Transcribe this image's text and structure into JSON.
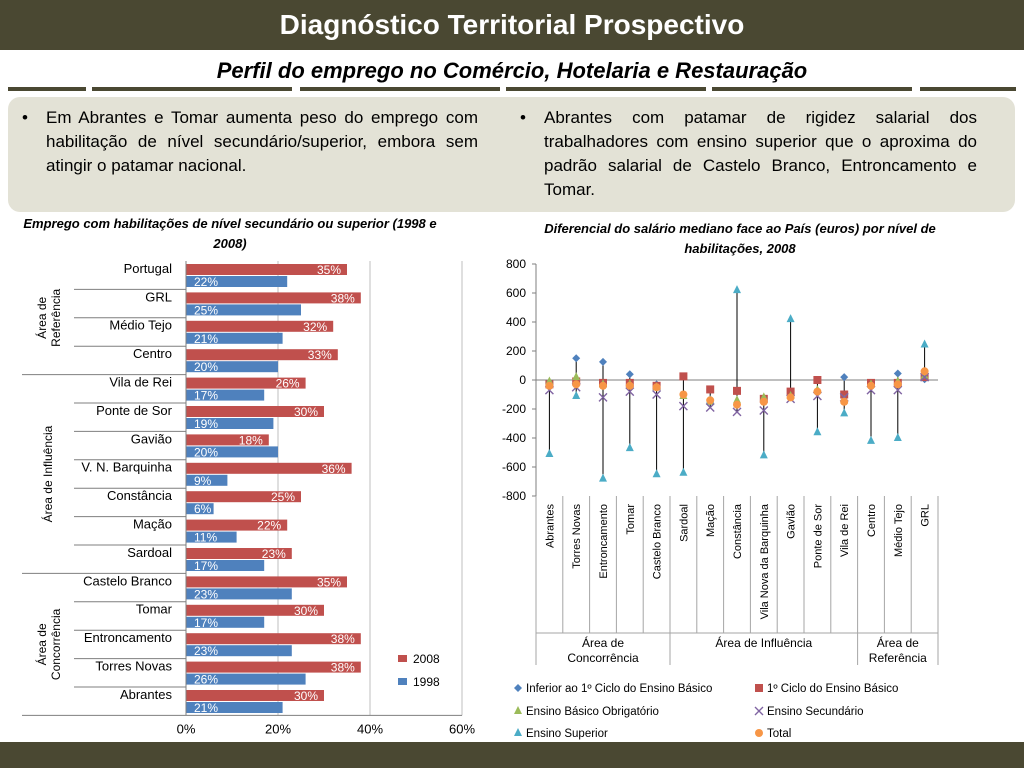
{
  "header": {
    "title": "Diagnóstico Territorial Prospectivo",
    "subtitle": "Perfil do emprego no Comércio, Hotelaria e Restauração"
  },
  "bullets": {
    "left": "Em Abrantes e Tomar aumenta peso do emprego com habilitação de nível secundário/superior, embora sem atingir o patamar nacional.",
    "right": "Abrantes com patamar de rigidez salarial dos trabalhadores com ensino superior que o aproxima do padrão salarial de Castelo Branco, Entroncamento e Tomar.",
    "marker": "•"
  },
  "colors": {
    "dark_olive": "#4a4832",
    "panel": "#e3e2d6",
    "red_2008": "#c0504d",
    "blue_1998": "#4f81bd",
    "green": "#9bbb59",
    "purple": "#8064a2",
    "cyan": "#4bacc6",
    "orange": "#f79646"
  },
  "chart_data": [
    {
      "type": "bar",
      "title": "Emprego com habilitações de nível secundário ou superior (1998 e 2008)",
      "categories": [
        "Portugal",
        "GRL",
        "Médio Tejo",
        "Centro",
        "Vila de Rei",
        "Ponte de Sor",
        "Gavião",
        "V. N. Barquinha",
        "Constância",
        "Mação",
        "Sardoal",
        "Castelo Branco",
        "Tomar",
        "Entroncamento",
        "Torres Novas",
        "Abrantes"
      ],
      "groups": [
        {
          "label": "Área de Referência",
          "count": 4
        },
        {
          "label": "Área de Influência",
          "count": 7
        },
        {
          "label": "Área de Concorrência",
          "count": 5
        }
      ],
      "series": [
        {
          "name": "2008",
          "color": "#c0504d",
          "values": [
            35,
            38,
            32,
            33,
            26,
            30,
            18,
            36,
            25,
            22,
            23,
            35,
            30,
            38,
            38,
            30
          ],
          "labels": [
            "35%",
            "38%",
            "32%",
            "33%",
            "26%",
            "30%",
            "18%",
            "36%",
            "25%",
            "22%",
            "23%",
            "35%",
            "30%",
            "38%",
            "38%",
            "30%"
          ]
        },
        {
          "name": "1998",
          "color": "#4f81bd",
          "values": [
            22,
            25,
            21,
            20,
            17,
            19,
            20,
            9,
            6,
            11,
            17,
            23,
            17,
            23,
            26,
            21
          ],
          "labels": [
            "22%",
            "25%",
            "21%",
            "20%",
            "17%",
            "19%",
            "20%",
            "9%",
            "6%",
            "11%",
            "17%",
            "23%",
            "17%",
            "23%",
            "26%",
            "21%"
          ]
        }
      ],
      "xlim": [
        0,
        60
      ],
      "xticks": [
        "0%",
        "20%",
        "40%",
        "60%"
      ],
      "legend_position": "right"
    },
    {
      "type": "scatter",
      "title": "Diferencial do salário mediano face ao País (euros) por nível de habilitações, 2008",
      "categories": [
        "Abrantes",
        "Torres Novas",
        "Entroncamento",
        "Tomar",
        "Castelo Branco",
        "Sardoal",
        "Mação",
        "Constância",
        "Vila Nova da Barquinha",
        "Gavião",
        "Ponte de Sor",
        "Vila de Rei",
        "Centro",
        "Médio Tejo",
        "GRL"
      ],
      "groups": [
        {
          "label": "Área de Concorrência",
          "count": 5
        },
        {
          "label": "Área de Influência",
          "count": 7
        },
        {
          "label": "Área de Referência",
          "count": 3
        }
      ],
      "ylim": [
        -800,
        800
      ],
      "yticks": [
        "800",
        "600",
        "400",
        "200",
        "0",
        "-200",
        "-400",
        "-600",
        "-800"
      ],
      "series": [
        {
          "name": "Inferior ao 1º Ciclo do Ensino Básico",
          "marker": "diamond",
          "color": "#4f81bd",
          "values": [
            -20,
            150,
            125,
            40,
            -30,
            null,
            null,
            null,
            null,
            null,
            null,
            20,
            -20,
            45,
            5
          ]
        },
        {
          "name": "1º Ciclo do Ensino Básico",
          "marker": "square",
          "color": "#c0504d",
          "values": [
            -30,
            -10,
            -20,
            -20,
            -40,
            25,
            -65,
            -75,
            -130,
            -80,
            0,
            -100,
            -20,
            -20,
            20
          ]
        },
        {
          "name": "Ensino Básico Obrigatório",
          "marker": "triangle",
          "color": "#9bbb59",
          "values": [
            -10,
            20,
            -30,
            -30,
            -50,
            -110,
            -150,
            -140,
            -120,
            -110,
            -70,
            -140,
            -30,
            -10,
            30
          ]
        },
        {
          "name": "Ensino Secundário",
          "marker": "x",
          "color": "#8064a2",
          "values": [
            -70,
            -50,
            -120,
            -80,
            -100,
            -180,
            -190,
            -220,
            -210,
            -130,
            -110,
            -120,
            -70,
            -70,
            20
          ]
        },
        {
          "name": "Ensino Superior",
          "marker": "triangle",
          "color": "#4bacc6",
          "values": [
            -510,
            -110,
            -680,
            -470,
            -650,
            -640,
            -140,
            620,
            -520,
            420,
            -360,
            -230,
            -420,
            -400,
            245
          ]
        },
        {
          "name": "Total",
          "marker": "circle",
          "color": "#f79646",
          "values": [
            -40,
            -30,
            -40,
            -40,
            -50,
            -100,
            -140,
            -170,
            -150,
            -120,
            -80,
            -150,
            -40,
            -30,
            60
          ]
        }
      ],
      "legend_position": "bottom"
    }
  ]
}
